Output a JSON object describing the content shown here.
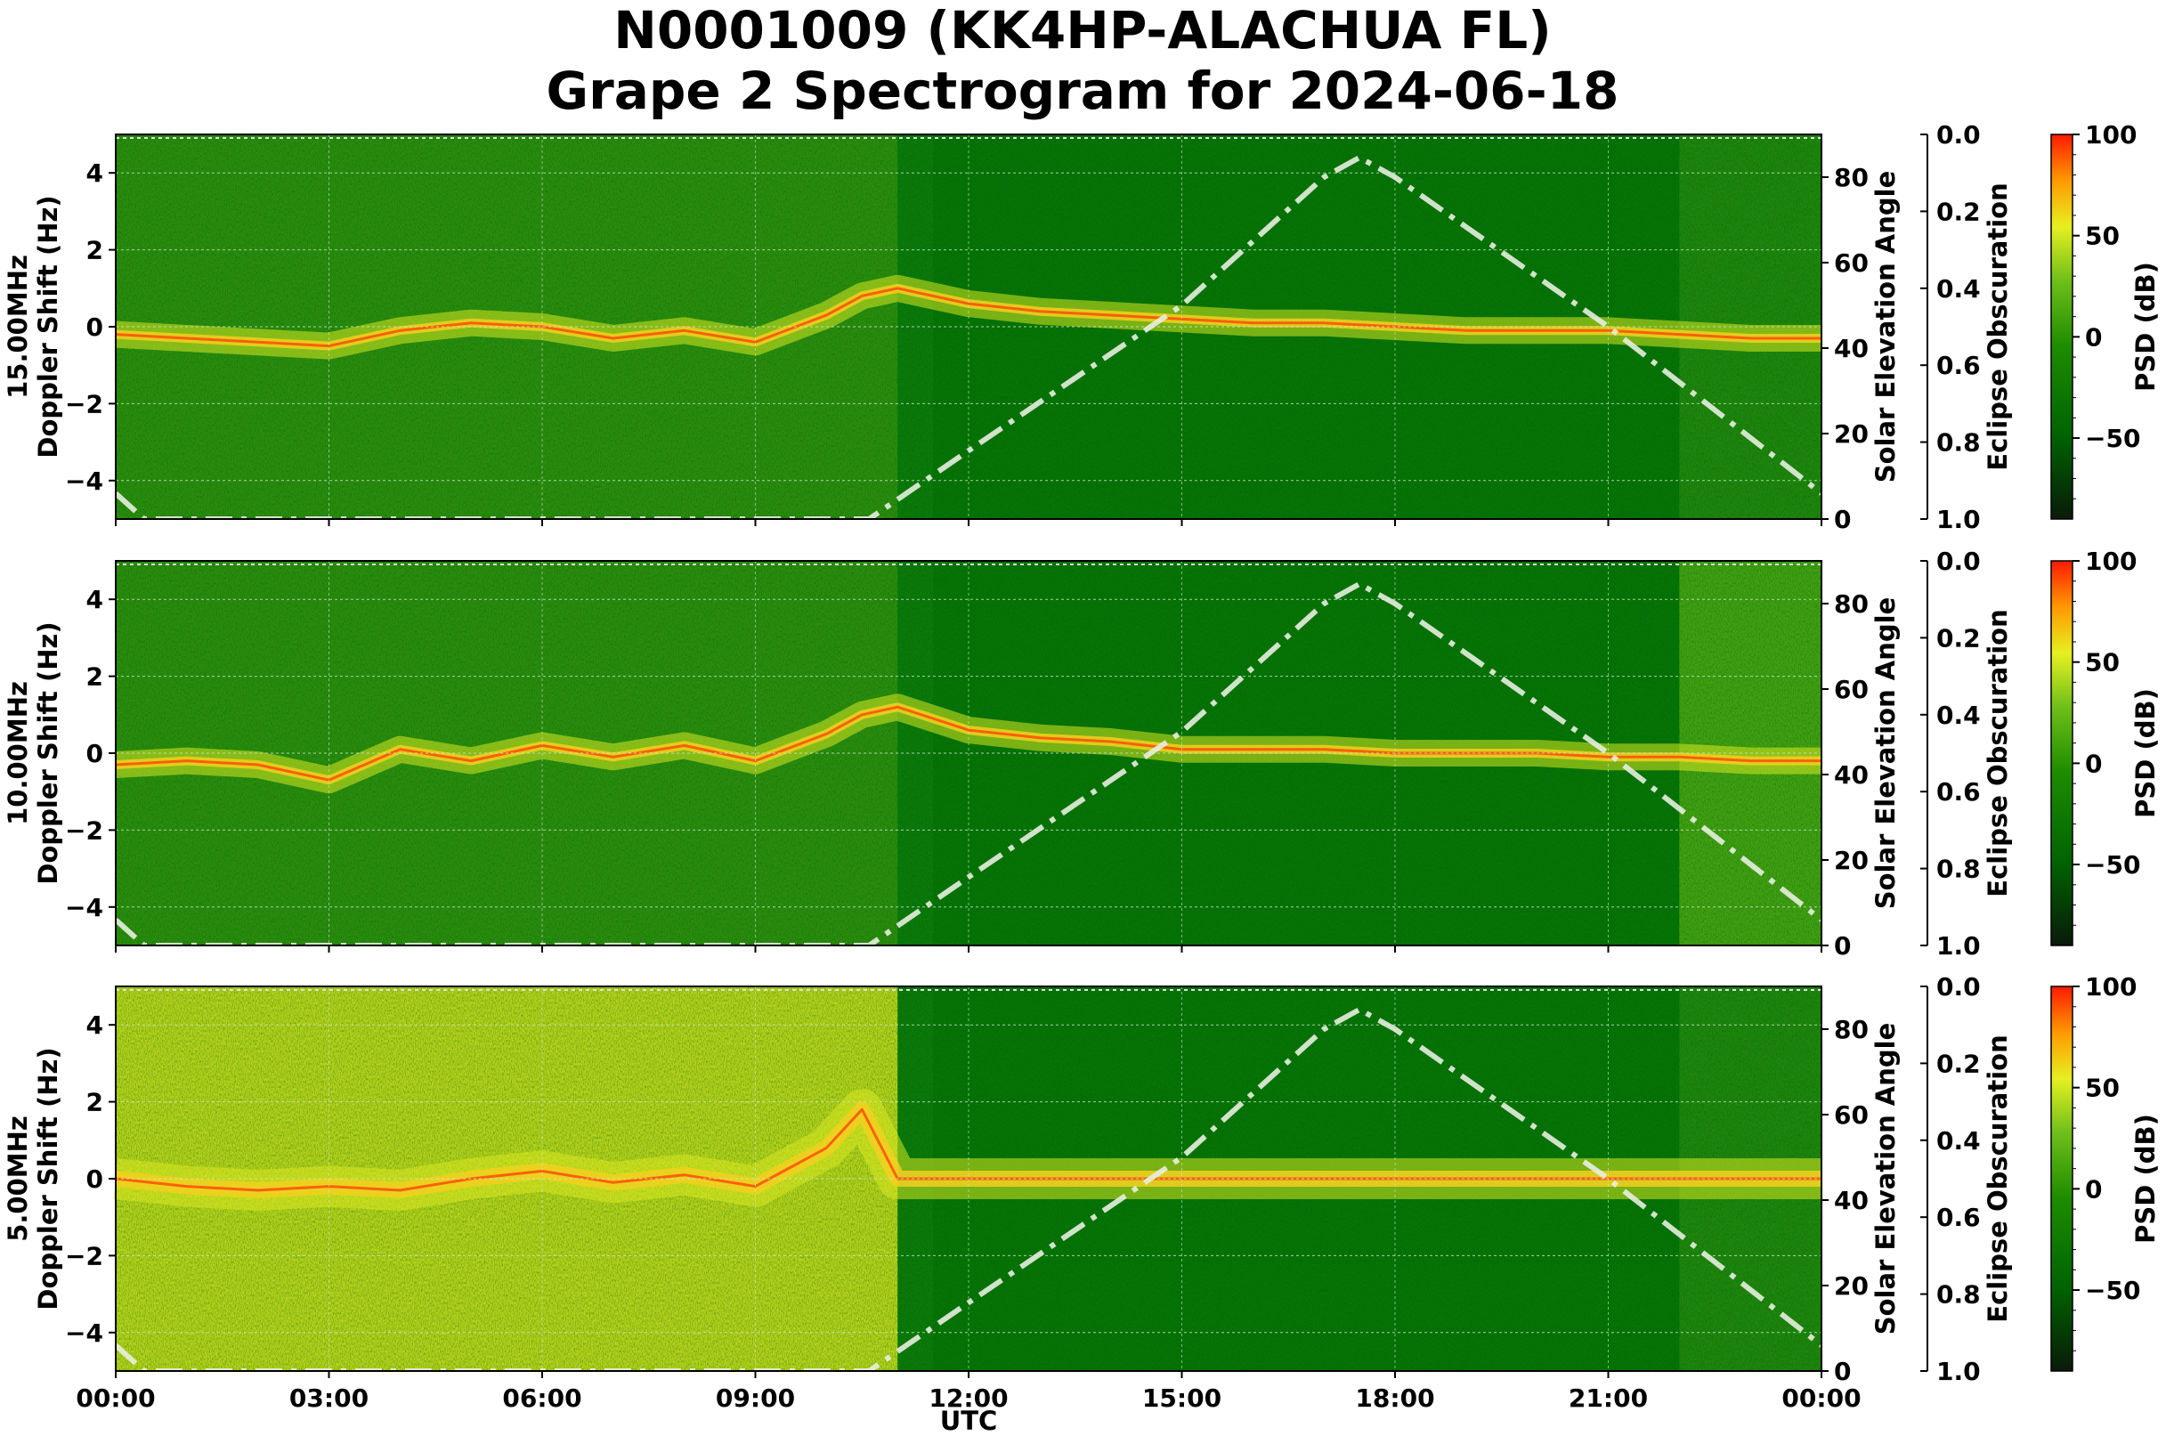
{
  "title_line1": "N0001009 (KK4HP-ALACHUA FL)",
  "title_line2": "Grape 2 Spectrogram for 2024-06-18",
  "xlabel": "UTC",
  "x_tick_labels": [
    "00:00",
    "03:00",
    "06:00",
    "09:00",
    "12:00",
    "15:00",
    "18:00",
    "21:00",
    "00:00"
  ],
  "y_tick_labels": [
    "4",
    "2",
    "0",
    "−2",
    "−4"
  ],
  "elev_tick_labels": [
    "80",
    "60",
    "40",
    "20",
    "0"
  ],
  "obsc_tick_labels": [
    "0.0",
    "0.2",
    "0.4",
    "0.6",
    "0.8",
    "1.0"
  ],
  "psd_tick_labels": [
    "100",
    "50",
    "0",
    "−50"
  ],
  "right_labels": {
    "solar": "Solar Elevation Angle",
    "eclipse": "Eclipse Obscuration",
    "psd": "PSD (dB)"
  },
  "colormap": [
    "#0a1a0a",
    "#006400",
    "#1e8c00",
    "#6fbf1a",
    "#e6f020",
    "#ff9900",
    "#ff1a00"
  ],
  "chart_data": [
    {
      "type": "heatmap",
      "panel": "15.00MHz",
      "ylabel_freq": "15.00MHz",
      "ylabel": "Doppler Shift (Hz)",
      "xlim_hours": [
        0,
        24
      ],
      "ylim_hz": [
        -5,
        5
      ],
      "y2_label": "Solar Elevation Angle",
      "y2_lim_deg": [
        0,
        90
      ],
      "y3_label": "Eclipse Obscuration",
      "y3_lim": [
        1.0,
        0.0
      ],
      "colorbar_label": "PSD (dB)",
      "colorbar_range_db": [
        -90,
        100
      ],
      "solar_elevation_series": {
        "hours": [
          0.0,
          0.4,
          10.6,
          12.0,
          15.0,
          17.0,
          17.5,
          18.0,
          21.0,
          24.0
        ],
        "deg": [
          6,
          0,
          0,
          16,
          50,
          80,
          84.6,
          80,
          45,
          6
        ]
      },
      "doppler_trace": {
        "hours": [
          0,
          1,
          2,
          3,
          4,
          5,
          6,
          7,
          8,
          9,
          10,
          10.5,
          11,
          12,
          13,
          14,
          15,
          16,
          17,
          18,
          19,
          20,
          21,
          22,
          23,
          24
        ],
        "hz": [
          -0.2,
          -0.3,
          -0.4,
          -0.5,
          -0.1,
          0.1,
          0.0,
          -0.3,
          -0.1,
          -0.4,
          0.3,
          0.8,
          1.0,
          0.6,
          0.4,
          0.3,
          0.2,
          0.1,
          0.1,
          0.0,
          -0.1,
          -0.1,
          -0.1,
          -0.2,
          -0.3,
          -0.3
        ]
      }
    },
    {
      "type": "heatmap",
      "panel": "10.00MHz",
      "ylabel_freq": "10.00MHz",
      "ylabel": "Doppler Shift (Hz)",
      "xlim_hours": [
        0,
        24
      ],
      "ylim_hz": [
        -5,
        5
      ],
      "y2_label": "Solar Elevation Angle",
      "y2_lim_deg": [
        0,
        90
      ],
      "y3_label": "Eclipse Obscuration",
      "y3_lim": [
        1.0,
        0.0
      ],
      "colorbar_label": "PSD (dB)",
      "colorbar_range_db": [
        -90,
        100
      ],
      "solar_elevation_series": {
        "hours": [
          0.0,
          0.4,
          10.6,
          12.0,
          15.0,
          17.0,
          17.5,
          18.0,
          21.0,
          24.0
        ],
        "deg": [
          6,
          0,
          0,
          16,
          50,
          80,
          84.6,
          80,
          45,
          6
        ]
      },
      "doppler_trace": {
        "hours": [
          0,
          1,
          2,
          3,
          4,
          5,
          6,
          7,
          8,
          9,
          10,
          10.5,
          11,
          12,
          13,
          14,
          15,
          16,
          17,
          18,
          19,
          20,
          21,
          22,
          23,
          24
        ],
        "hz": [
          -0.3,
          -0.2,
          -0.3,
          -0.7,
          0.1,
          -0.2,
          0.2,
          -0.1,
          0.2,
          -0.2,
          0.5,
          1.0,
          1.2,
          0.6,
          0.4,
          0.3,
          0.1,
          0.1,
          0.1,
          0.0,
          0.0,
          0.0,
          -0.1,
          -0.1,
          -0.2,
          -0.2
        ]
      }
    },
    {
      "type": "heatmap",
      "panel": "5.00MHz",
      "ylabel_freq": "5.00MHz",
      "ylabel": "Doppler Shift (Hz)",
      "xlim_hours": [
        0,
        24
      ],
      "ylim_hz": [
        -5,
        5
      ],
      "y2_label": "Solar Elevation Angle",
      "y2_lim_deg": [
        0,
        90
      ],
      "y3_label": "Eclipse Obscuration",
      "y3_lim": [
        1.0,
        0.0
      ],
      "colorbar_label": "PSD (dB)",
      "colorbar_range_db": [
        -90,
        100
      ],
      "solar_elevation_series": {
        "hours": [
          0.0,
          0.4,
          10.6,
          12.0,
          15.0,
          17.0,
          17.5,
          18.0,
          21.0,
          24.0
        ],
        "deg": [
          6,
          0,
          0,
          16,
          50,
          80,
          84.6,
          80,
          45,
          6
        ]
      },
      "doppler_trace": {
        "hours": [
          0,
          1,
          2,
          3,
          4,
          5,
          6,
          7,
          8,
          9,
          9.5,
          10,
          10.5,
          11,
          12,
          13,
          14,
          15,
          16,
          17,
          18,
          19,
          20,
          21,
          22,
          23,
          24
        ],
        "hz": [
          0.0,
          -0.2,
          -0.3,
          -0.2,
          -0.3,
          0.0,
          0.2,
          -0.1,
          0.1,
          -0.2,
          0.3,
          0.8,
          1.8,
          0.0,
          0.0,
          0.0,
          0.0,
          0.0,
          0.0,
          0.0,
          0.0,
          0.0,
          0.0,
          0.0,
          0.0,
          0.0,
          0.0
        ]
      }
    }
  ]
}
